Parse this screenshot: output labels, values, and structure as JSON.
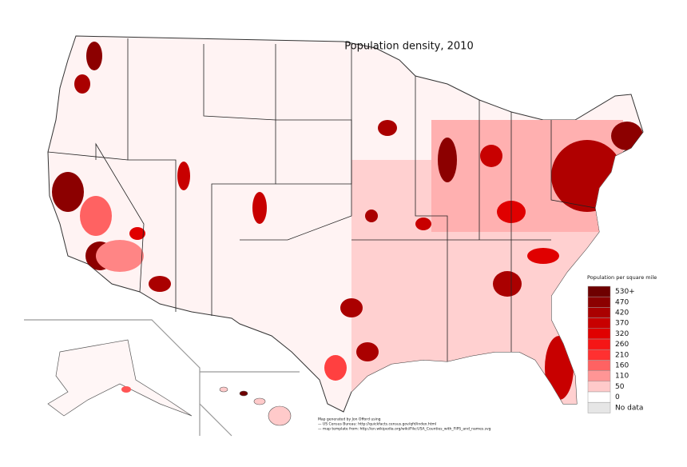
{
  "title": "Population density, 2010",
  "legend": {
    "title": "Population per square mile",
    "items": [
      {
        "label": "530+",
        "color": "#6e0000"
      },
      {
        "label": "470",
        "color": "#8c0000"
      },
      {
        "label": "420",
        "color": "#aa0000"
      },
      {
        "label": "370",
        "color": "#c80000"
      },
      {
        "label": "320",
        "color": "#e00000"
      },
      {
        "label": "260",
        "color": "#f51616"
      },
      {
        "label": "210",
        "color": "#ff3030"
      },
      {
        "label": "160",
        "color": "#ff6262"
      },
      {
        "label": "110",
        "color": "#ff9595"
      },
      {
        "label": "50",
        "color": "#ffcaca"
      },
      {
        "label": "0",
        "color": "#ffffff"
      },
      {
        "label": "No data",
        "color": "#e6e6e6"
      }
    ]
  },
  "credits": [
    "Map generated by Jon Offord using",
    "— US Census Bureau: http://quickfacts.census.gov/qfd/index.html",
    "— map template from: http://en.wikipedia.org/wiki/File:USA_Counties_with_FIPS_and_names.svg"
  ]
}
